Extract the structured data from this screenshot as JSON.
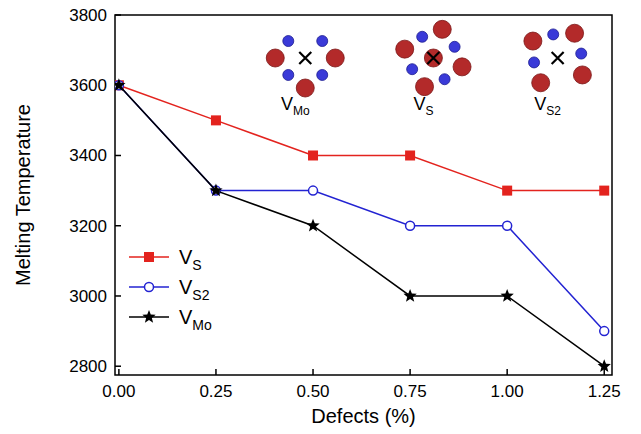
{
  "chart_data": {
    "type": "line",
    "x_label": "Defects (%)",
    "y_label": "Melting Temperature",
    "x": [
      0,
      0.25,
      0.5,
      0.75,
      1.0,
      1.25
    ],
    "series": [
      {
        "name": "VS",
        "color": "#e3231e",
        "marker": "square",
        "values": [
          3600,
          3500,
          3400,
          3400,
          3300,
          3300
        ]
      },
      {
        "name": "VS2",
        "color": "#2323d2",
        "marker": "open-circle",
        "values": [
          3600,
          3300,
          3300,
          3200,
          3200,
          2900
        ]
      },
      {
        "name": "VMo",
        "color": "#000000",
        "marker": "star",
        "values": [
          3600,
          3300,
          3200,
          3000,
          3000,
          2800
        ]
      }
    ],
    "annotations": [
      "VMo",
      "VS",
      "VS2"
    ],
    "xlim": [
      -0.01,
      1.27
    ],
    "ylim": [
      2775,
      3800
    ],
    "xticks": [
      {
        "value": 0,
        "label": "0.00"
      },
      {
        "value": 0.25,
        "label": "0.25"
      },
      {
        "value": 0.5,
        "label": "0.50"
      },
      {
        "value": 0.75,
        "label": "0.75"
      },
      {
        "value": 1.0,
        "label": "1.00"
      },
      {
        "value": 1.25,
        "label": "1.25"
      }
    ],
    "yticks": [
      2800,
      3000,
      3200,
      3400,
      3600,
      3800
    ],
    "grid": false,
    "legend": "lower left"
  }
}
